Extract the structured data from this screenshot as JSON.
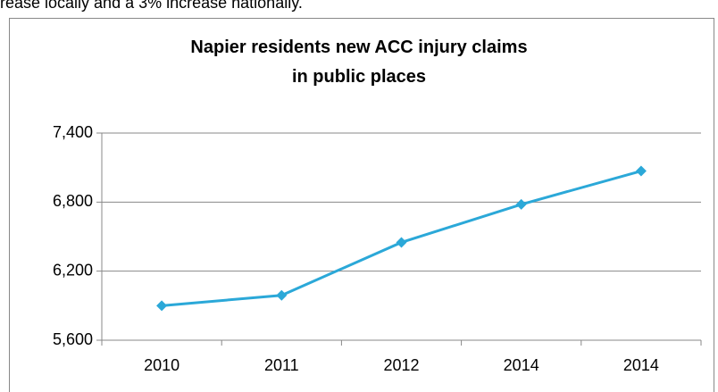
{
  "intro_text": "rease locally and a 3% increase nationally.",
  "chart_data": {
    "type": "line",
    "title": "Napier residents new ACC injury claims in public places",
    "categories": [
      "2010",
      "2011",
      "2012",
      "2014",
      "2014"
    ],
    "values": [
      5900,
      5990,
      6450,
      6780,
      7070
    ],
    "color": "#2ba8d8",
    "ylim": [
      5600,
      7400
    ],
    "yticks": [
      {
        "value": 5600,
        "label": "5,600"
      },
      {
        "value": 6200,
        "label": "6,200"
      },
      {
        "value": 6800,
        "label": "6,800"
      },
      {
        "value": 7400,
        "label": "7,400"
      }
    ],
    "grid": true
  }
}
